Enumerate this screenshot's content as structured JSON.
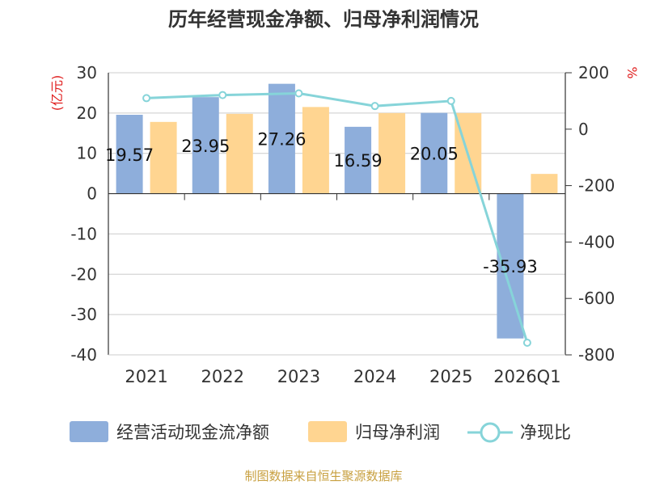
{
  "chart_data": {
    "type": "bar",
    "title": "历年经营现金净额、归母净利润情况",
    "categories": [
      "2021",
      "2022",
      "2023",
      "2024",
      "2025",
      "2026Q1"
    ],
    "series": [
      {
        "name": "经营活动现金流净额",
        "kind": "bar",
        "axis": "left",
        "color": "#8eaedb",
        "values": [
          19.57,
          23.95,
          27.26,
          16.59,
          20.05,
          -35.93
        ]
      },
      {
        "name": "归母净利润",
        "kind": "bar",
        "axis": "left",
        "color": "#ffd591",
        "values": [
          17.8,
          19.8,
          21.5,
          20.0,
          20.0,
          4.9
        ]
      },
      {
        "name": "净现比",
        "kind": "line",
        "axis": "right",
        "color": "#86d4d9",
        "values": [
          110,
          121,
          127,
          82,
          100,
          -757
        ]
      }
    ],
    "data_labels": [
      "19.57",
      "23.95",
      "27.26",
      "16.59",
      "20.05",
      "-35.93"
    ],
    "left_axis": {
      "label": "(亿元)",
      "ticks": [
        30,
        20,
        10,
        0,
        -10,
        -20,
        -30,
        -40
      ],
      "range": [
        -40,
        30
      ]
    },
    "right_axis": {
      "label": "%",
      "ticks": [
        200,
        0,
        -200,
        -400,
        -600,
        -800
      ],
      "range": [
        -800,
        200
      ]
    },
    "legend_position": "bottom",
    "grid": true,
    "source": "制图数据来自恒生聚源数据库"
  }
}
